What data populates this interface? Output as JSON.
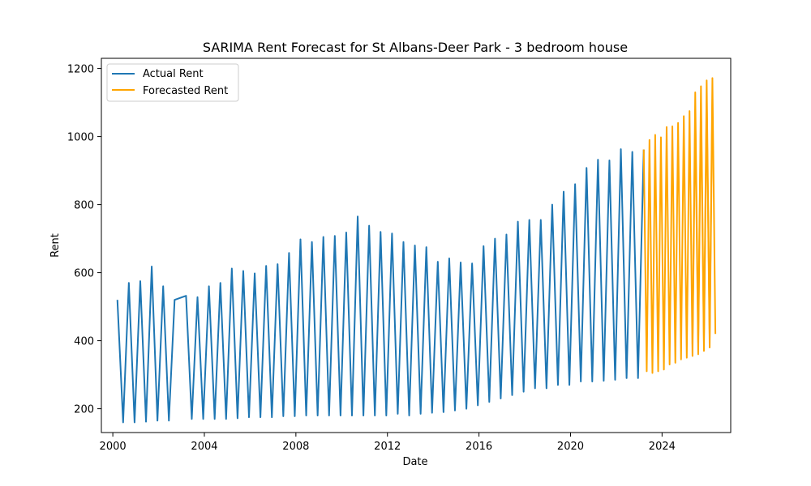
{
  "chart_data": {
    "type": "line",
    "title": "SARIMA Rent Forecast for St Albans-Deer Park - 3 bedroom house",
    "xlabel": "Date",
    "ylabel": "Rent",
    "xlim": [
      1999.5,
      2027.0
    ],
    "ylim": [
      130,
      1230
    ],
    "x_ticks": [
      2000,
      2004,
      2008,
      2012,
      2016,
      2020,
      2024
    ],
    "x_tick_labels": [
      "2000",
      "2004",
      "2008",
      "2012",
      "2016",
      "2020",
      "2024"
    ],
    "y_ticks": [
      200,
      400,
      600,
      800,
      1000,
      1200
    ],
    "y_tick_labels": [
      "200",
      "400",
      "600",
      "800",
      "1000",
      "1200"
    ],
    "grid": false,
    "legend_position": "top-left",
    "series": [
      {
        "name": "Actual Rent",
        "color": "#1f77b4",
        "x": [
          2000.2,
          2000.45,
          2000.7,
          2000.95,
          2001.2,
          2001.45,
          2001.7,
          2001.95,
          2002.2,
          2002.45,
          2002.7,
          2003.2,
          2003.45,
          2003.7,
          2003.95,
          2004.2,
          2004.45,
          2004.7,
          2004.95,
          2005.2,
          2005.45,
          2005.7,
          2005.95,
          2006.2,
          2006.45,
          2006.7,
          2006.95,
          2007.2,
          2007.45,
          2007.7,
          2007.95,
          2008.2,
          2008.45,
          2008.7,
          2008.95,
          2009.2,
          2009.45,
          2009.7,
          2009.95,
          2010.2,
          2010.45,
          2010.7,
          2010.95,
          2011.2,
          2011.45,
          2011.7,
          2011.95,
          2012.2,
          2012.45,
          2012.7,
          2012.95,
          2013.2,
          2013.45,
          2013.7,
          2013.95,
          2014.2,
          2014.45,
          2014.7,
          2014.95,
          2015.2,
          2015.45,
          2015.7,
          2015.95,
          2016.2,
          2016.45,
          2016.7,
          2016.95,
          2017.2,
          2017.45,
          2017.7,
          2017.95,
          2018.2,
          2018.45,
          2018.7,
          2018.95,
          2019.2,
          2019.45,
          2019.7,
          2019.95,
          2020.2,
          2020.45,
          2020.7,
          2020.95,
          2021.2,
          2021.45,
          2021.7,
          2021.95,
          2022.2,
          2022.45,
          2022.7,
          2022.95,
          2023.2
        ],
        "values": [
          520,
          160,
          570,
          160,
          575,
          162,
          618,
          165,
          560,
          165,
          520,
          532,
          170,
          528,
          170,
          560,
          170,
          570,
          170,
          612,
          172,
          605,
          175,
          598,
          175,
          620,
          175,
          625,
          178,
          658,
          178,
          698,
          180,
          690,
          180,
          705,
          180,
          708,
          180,
          718,
          180,
          765,
          180,
          738,
          180,
          720,
          180,
          715,
          185,
          690,
          180,
          680,
          185,
          675,
          188,
          632,
          190,
          642,
          195,
          630,
          200,
          627,
          210,
          678,
          220,
          700,
          230,
          712,
          240,
          750,
          250,
          755,
          260,
          755,
          260,
          800,
          270,
          838,
          270,
          860,
          280,
          908,
          280,
          932,
          282,
          930,
          285,
          963,
          290,
          955,
          290,
          962
        ]
      },
      {
        "name": "Forecasted Rent",
        "color": "#ffa500",
        "x": [
          2023.2,
          2023.33,
          2023.45,
          2023.58,
          2023.7,
          2023.83,
          2023.95,
          2024.08,
          2024.2,
          2024.33,
          2024.45,
          2024.58,
          2024.7,
          2024.83,
          2024.95,
          2025.08,
          2025.2,
          2025.33,
          2025.45,
          2025.58,
          2025.7,
          2025.83,
          2025.95,
          2026.08,
          2026.2
        ],
        "values": [
          962,
          310,
          990,
          305,
          1005,
          310,
          998,
          315,
          1028,
          330,
          1030,
          335,
          1040,
          345,
          1060,
          350,
          1075,
          355,
          1068,
          360,
          1098,
          370,
          1105,
          380,
          1110
        ]
      }
    ],
    "forecast_extra": {
      "x": [
        2025.33,
        2025.45,
        2025.58,
        2025.7,
        2025.83,
        2025.95,
        2026.08,
        2026.2,
        2026.33
      ],
      "values": [
        390,
        1130,
        395,
        1148,
        400,
        1165,
        410,
        1172,
        420
      ]
    }
  }
}
